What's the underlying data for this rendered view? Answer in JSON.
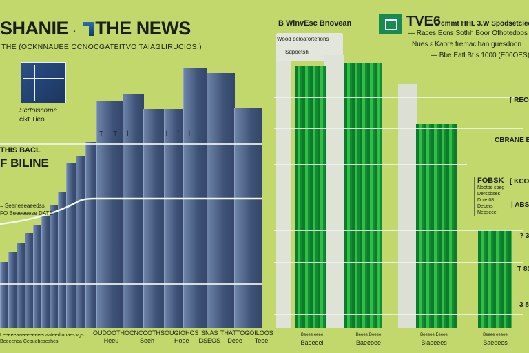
{
  "header": {
    "title_left": "SHANIE",
    "title_right": "THE NEWS",
    "subtitle": "THE (OCKNNAUEE OCNOCGATEITVO TAIAGLIRUCIOS.)"
  },
  "left_panel": {
    "logo_caption_1": "Scrtolscome",
    "logo_caption_2": "cikt Tieo",
    "label_1": "THIS BACL",
    "label_2": "F BILINE",
    "note_1": "= Seeneeeaeedss",
    "note_2": "FO Beeeeeese DATE",
    "building_labels": [
      "T",
      "Tl",
      "f",
      "fl"
    ],
    "footer_1": "Leeeeeaaeeeeeeeeuaafeed onaes vgs",
    "footer_2": "Beeeenoa Cebuebeseshes",
    "categories": [
      "OUDOOTHO",
      "CNCCOTHS",
      "OUGIOHOS",
      "SNAS",
      "THATTOG",
      "OILOOS"
    ],
    "category_subs": [
      "Heeu",
      "Seeh",
      "Hooe",
      "DSEOS",
      "Deee",
      "Teee"
    ]
  },
  "right_panel": {
    "header": "B WinvEsc Bnovean",
    "box_line_1": "Wood beloafortefions",
    "box_line_2": "Sdpoetsh",
    "tv_title": "TVE6",
    "tv_headline": "cmmt HHL 3.W Spodsetcied",
    "tv_line_1": "— Races Eons Sothh Boor Ofhotedoos",
    "tv_line_2": "Nues ε  Kaore fremaclhan guesdoon",
    "tv_line_3": "— Bbe Eatl Bt s 1000 (E00OES)",
    "right_labels": [
      "[ RECO",
      "CBRANE B",
      "[ KCO",
      "| ABS/",
      "? 30",
      "T 80",
      "3 8"
    ],
    "callout_title": "FOBSK",
    "callout_lines": [
      "Nootbs sbeg",
      "Derssbses",
      "Dole 08",
      "Debers",
      "Nebsece"
    ],
    "categories": [
      "Baeeoei",
      "Baeeoee",
      "Blaeeees",
      "Baeeees"
    ],
    "category_heads": [
      "Beeee eeee",
      "Beeee Deeee",
      "Beeeee Eeeee",
      "Beeee eeeee"
    ]
  },
  "colors": {
    "background": "#c2d86c",
    "navy": "#3d5175",
    "green": "#1f9a35",
    "panel": "#e0e3d8"
  }
}
